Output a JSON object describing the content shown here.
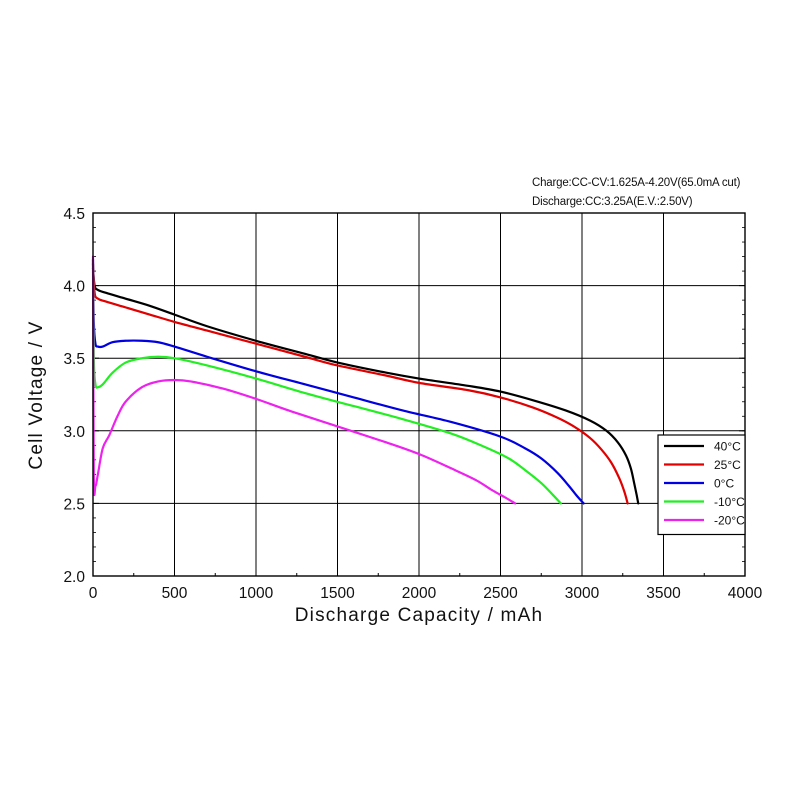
{
  "chart_data": {
    "type": "line",
    "notes": [
      "Charge:CC-CV:1.625A-4.20V(65.0mA cut)",
      "Discharge:CC:3.25A(E.V.:2.50V)"
    ],
    "xlabel": "Discharge  Capacity  /  mAh",
    "ylabel": "Cell  Voltage  /  V",
    "xlim": [
      0,
      4000
    ],
    "ylim": [
      2.0,
      4.5
    ],
    "x_ticks": [
      "0",
      "500",
      "1000",
      "1500",
      "2000",
      "2500",
      "3000",
      "3500",
      "4000"
    ],
    "y_ticks": [
      "2.0",
      "2.5",
      "3.0",
      "3.5",
      "4.0",
      "4.5"
    ],
    "grid": true,
    "legend_position": "right",
    "series": [
      {
        "name": "40°C",
        "color": "#000000",
        "x": [
          0,
          10,
          30,
          80,
          200,
          350,
          500,
          700,
          1000,
          1300,
          1500,
          1800,
          2000,
          2300,
          2500,
          2700,
          2900,
          3050,
          3150,
          3220,
          3270,
          3300,
          3320,
          3335,
          3345
        ],
        "y": [
          4.12,
          4.0,
          3.97,
          3.95,
          3.91,
          3.86,
          3.8,
          3.72,
          3.62,
          3.53,
          3.47,
          3.4,
          3.36,
          3.31,
          3.27,
          3.21,
          3.14,
          3.07,
          3.0,
          2.92,
          2.83,
          2.74,
          2.64,
          2.56,
          2.5
        ]
      },
      {
        "name": "25°C",
        "color": "#e00000",
        "x": [
          0,
          10,
          30,
          80,
          200,
          350,
          500,
          700,
          1000,
          1300,
          1500,
          1800,
          2000,
          2300,
          2500,
          2700,
          2850,
          2950,
          3050,
          3120,
          3180,
          3230,
          3260,
          3280
        ],
        "y": [
          4.15,
          3.95,
          3.91,
          3.89,
          3.85,
          3.8,
          3.75,
          3.69,
          3.6,
          3.51,
          3.45,
          3.38,
          3.33,
          3.28,
          3.23,
          3.16,
          3.09,
          3.03,
          2.95,
          2.87,
          2.78,
          2.67,
          2.58,
          2.5
        ]
      },
      {
        "name": "0°C",
        "color": "#0000e0",
        "x": [
          0,
          5,
          15,
          30,
          60,
          120,
          200,
          300,
          400,
          500,
          700,
          1000,
          1300,
          1600,
          1900,
          2200,
          2500,
          2650,
          2750,
          2850,
          2920,
          2970,
          3010
        ],
        "y": [
          4.18,
          3.75,
          3.6,
          3.58,
          3.58,
          3.61,
          3.62,
          3.62,
          3.61,
          3.58,
          3.51,
          3.41,
          3.32,
          3.23,
          3.14,
          3.06,
          2.96,
          2.88,
          2.81,
          2.71,
          2.62,
          2.55,
          2.5
        ]
      },
      {
        "name": "-10°C",
        "color": "#22ee22",
        "x": [
          0,
          5,
          15,
          30,
          60,
          120,
          200,
          300,
          400,
          500,
          700,
          1000,
          1300,
          1600,
          1900,
          2200,
          2400,
          2550,
          2650,
          2750,
          2820,
          2870
        ],
        "y": [
          4.15,
          3.5,
          3.32,
          3.3,
          3.32,
          3.4,
          3.47,
          3.5,
          3.51,
          3.5,
          3.45,
          3.36,
          3.26,
          3.17,
          3.08,
          2.98,
          2.89,
          2.81,
          2.73,
          2.64,
          2.56,
          2.5
        ]
      },
      {
        "name": "-20°C",
        "color": "#ee22ee",
        "x": [
          0,
          5,
          15,
          30,
          60,
          100,
          150,
          200,
          300,
          400,
          500,
          600,
          800,
          1000,
          1200,
          1500,
          1800,
          2000,
          2200,
          2350,
          2450,
          2530,
          2590
        ],
        "y": [
          4.2,
          2.7,
          2.62,
          2.7,
          2.88,
          2.97,
          3.1,
          3.2,
          3.3,
          3.34,
          3.35,
          3.34,
          3.29,
          3.22,
          3.14,
          3.03,
          2.92,
          2.84,
          2.74,
          2.66,
          2.59,
          2.54,
          2.5
        ]
      }
    ]
  }
}
